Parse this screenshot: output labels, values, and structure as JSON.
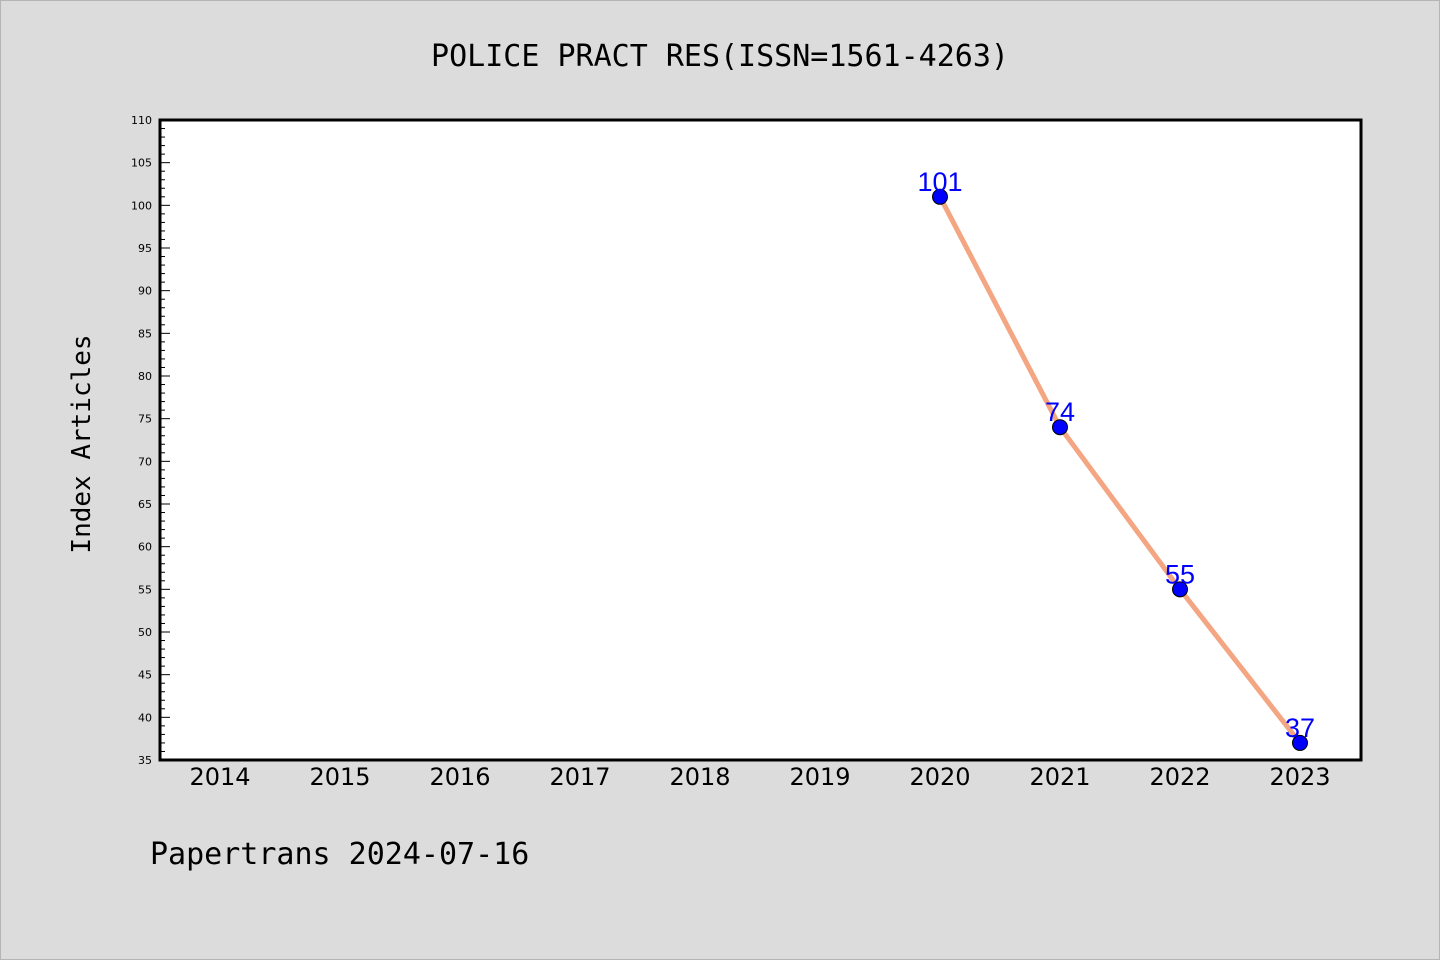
{
  "chart_data": {
    "type": "line",
    "title": "POLICE PRACT RES(ISSN=1561-4263)",
    "ylabel": "Index Articles",
    "xlabel": "",
    "categories": [
      "2014",
      "2015",
      "2016",
      "2017",
      "2018",
      "2019",
      "2020",
      "2021",
      "2022",
      "2023"
    ],
    "series": [
      {
        "x": [
          "2020",
          "2021",
          "2022",
          "2023"
        ],
        "values": [
          101,
          74,
          55,
          37
        ]
      }
    ],
    "ylim": [
      35,
      110
    ],
    "ytick_step": 5,
    "grid": false,
    "line_color": "#f4a582",
    "marker_color": "#0000ff",
    "label_color": "#0000ff"
  },
  "footer": {
    "text": "Papertrans 2024-07-16"
  }
}
